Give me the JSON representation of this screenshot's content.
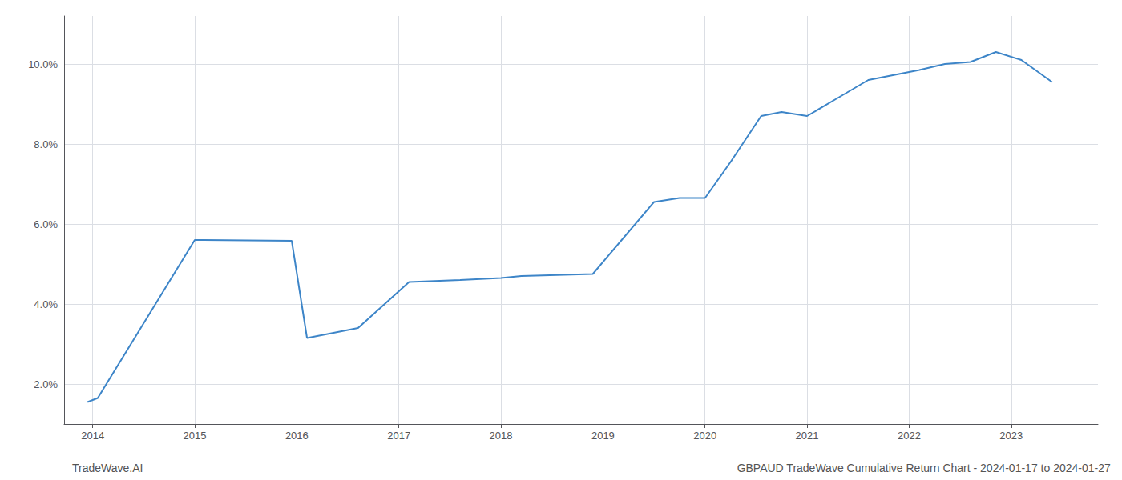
{
  "chart_data": {
    "type": "line",
    "x": [
      2013.95,
      2014.05,
      2015.0,
      2015.95,
      2016.1,
      2016.6,
      2017.1,
      2017.6,
      2018.0,
      2018.2,
      2018.9,
      2019.5,
      2019.75,
      2020.0,
      2020.25,
      2020.55,
      2020.75,
      2021.0,
      2021.3,
      2021.6,
      2021.9,
      2022.1,
      2022.35,
      2022.6,
      2022.85,
      2023.1,
      2023.4
    ],
    "values": [
      1.55,
      1.65,
      5.6,
      5.58,
      3.15,
      3.4,
      4.55,
      4.6,
      4.65,
      4.7,
      4.75,
      6.55,
      6.65,
      6.65,
      7.55,
      8.7,
      8.8,
      8.7,
      9.15,
      9.6,
      9.75,
      9.85,
      10.0,
      10.05,
      10.3,
      10.1,
      9.55
    ],
    "color": "#3d85c8",
    "xlim": [
      2013.72,
      2023.85
    ],
    "xticks": [
      2014,
      2015,
      2016,
      2017,
      2018,
      2019,
      2020,
      2021,
      2022,
      2023
    ],
    "ylim": [
      1.0,
      11.2
    ],
    "yticks": [
      {
        "value": 2.0,
        "label": "2.0%"
      },
      {
        "value": 4.0,
        "label": "4.0%"
      },
      {
        "value": 6.0,
        "label": "6.0%"
      },
      {
        "value": 8.0,
        "label": "8.0%"
      },
      {
        "value": 10.0,
        "label": "10.0%"
      }
    ],
    "grid": true,
    "annotations": [
      "TradeWave.AI",
      "GBPAUD TradeWave Cumulative Return Chart - 2024-01-17 to 2024-01-27"
    ]
  }
}
